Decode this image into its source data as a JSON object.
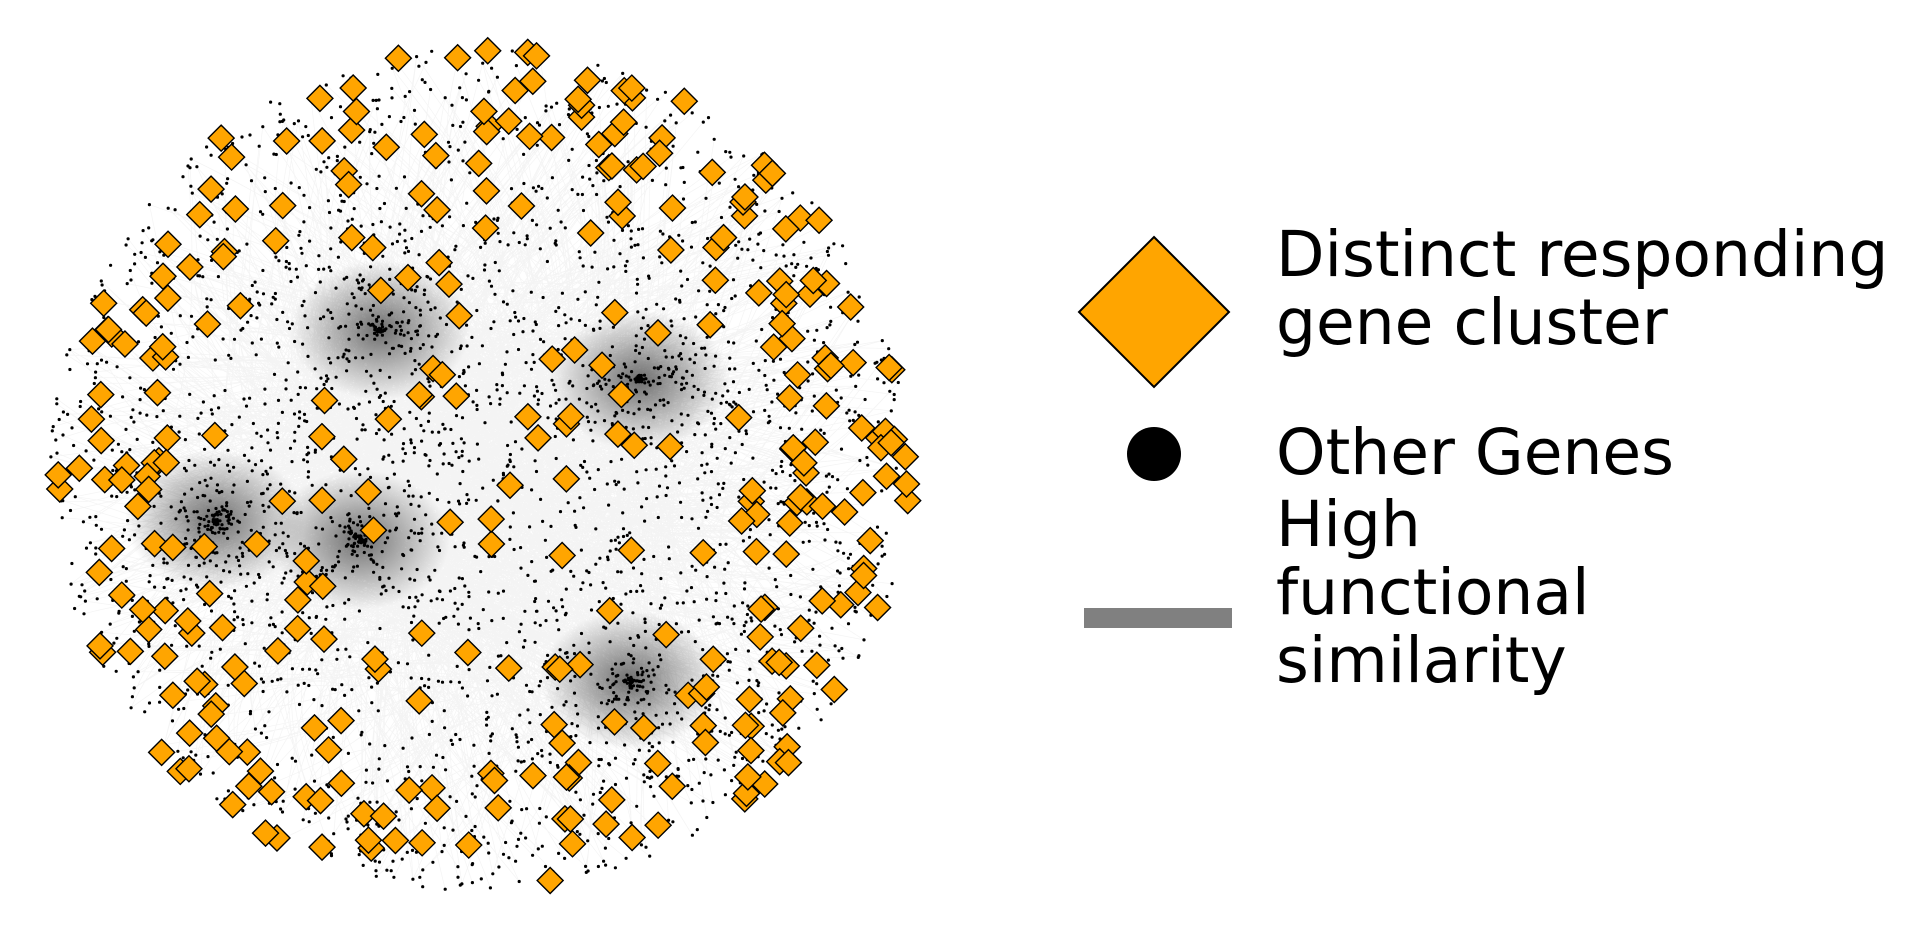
{
  "legend": {
    "items": [
      {
        "label_lines": [
          "Distinct responding",
          "gene cluster"
        ],
        "symbol": "diamond",
        "color": "#FFA500"
      },
      {
        "label_lines": [
          "Other Genes"
        ],
        "symbol": "circle",
        "color": "#000000"
      },
      {
        "label_lines": [
          "High",
          "functional",
          "similarity"
        ],
        "symbol": "line",
        "color": "#808080"
      }
    ]
  },
  "network": {
    "node_color_cluster": "#FFA500",
    "node_color_gene": "#000000",
    "edge_color": "#808080",
    "dense_regions_note": ""
  }
}
